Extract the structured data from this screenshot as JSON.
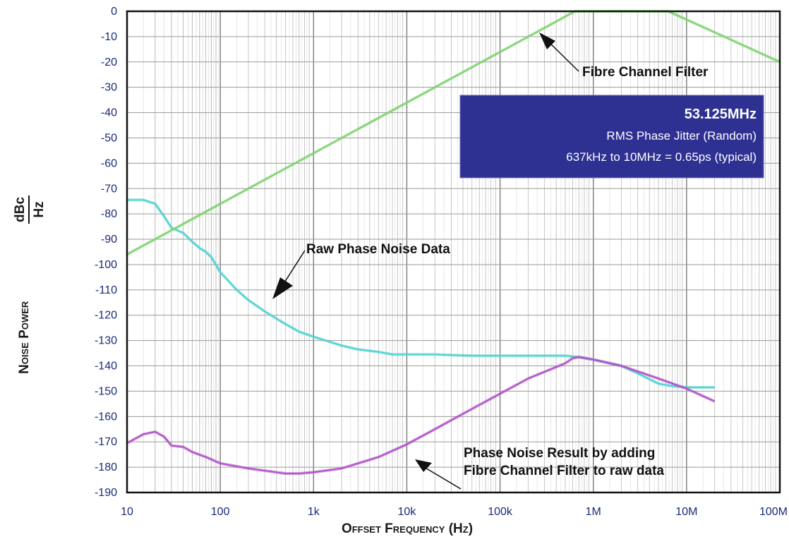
{
  "chart_data": {
    "type": "line",
    "xscale": "log",
    "xlim": [
      10,
      100000000
    ],
    "ylim": [
      -190,
      0
    ],
    "grid": true,
    "xlabel": "Offset Frequency (Hz)",
    "ylabel_main": "Noise Power",
    "ylabel_unit_num": "dBc",
    "ylabel_unit_den": "Hz",
    "x_tick_values": [
      10,
      100,
      1000,
      10000,
      100000,
      1000000,
      10000000,
      100000000
    ],
    "x_tick_labels": [
      "10",
      "100",
      "1k",
      "10k",
      "100k",
      "1M",
      "10M",
      "100M"
    ],
    "y_ticks": [
      0,
      -10,
      -20,
      -30,
      -40,
      -50,
      -60,
      -70,
      -80,
      -90,
      -100,
      -110,
      -120,
      -130,
      -140,
      -150,
      -160,
      -170,
      -180,
      -190
    ],
    "series": [
      {
        "color": "#4fd2d2",
        "x": [
          10,
          15,
          20,
          25,
          30,
          40,
          50,
          60,
          70,
          80,
          100,
          150,
          200,
          300,
          500,
          700,
          1000,
          2000,
          3000,
          5000,
          7000,
          10000,
          20000,
          50000,
          100000,
          200000,
          500000,
          700000,
          1000000,
          2000000,
          3000000,
          5000000,
          7000000,
          10000000,
          20000000
        ],
        "y": [
          -74.5,
          -74.5,
          -76,
          -81,
          -85.5,
          -87.5,
          -91,
          -93.5,
          -95,
          -97,
          -103,
          -110,
          -114,
          -118.5,
          -123.5,
          -126.5,
          -128.5,
          -132,
          -133.5,
          -134.5,
          -135.5,
          -135.5,
          -135.5,
          -136,
          -136,
          -136,
          -136,
          -136.5,
          -137.5,
          -140,
          -143,
          -147,
          -148,
          -148.5,
          -148.5
        ]
      },
      {
        "color": "#b050c8",
        "x": [
          10,
          15,
          20,
          25,
          30,
          40,
          50,
          70,
          100,
          200,
          500,
          700,
          1000,
          2000,
          5000,
          10000,
          20000,
          50000,
          100000,
          200000,
          500000,
          600000,
          700000,
          1000000,
          2000000,
          5000000,
          10000000,
          20000000
        ],
        "y": [
          -170.5,
          -167,
          -166,
          -168,
          -171.5,
          -172,
          -174,
          -176,
          -178.5,
          -180.5,
          -182.5,
          -182.5,
          -182,
          -180.5,
          -176,
          -171,
          -165,
          -157,
          -151,
          -145,
          -139,
          -137,
          -136.5,
          -137.5,
          -140,
          -145,
          -149,
          -154
        ]
      },
      {
        "color": "#7ed36e",
        "x": [
          10,
          637000,
          6370000,
          100000000
        ],
        "y": [
          -96,
          0,
          0,
          -20
        ]
      }
    ],
    "annotations": [
      {
        "text": "Fibre Channel Filter"
      },
      {
        "text": "Raw Phase Noise Data"
      },
      {
        "lines": [
          "Phase Noise Result by adding",
          "Fibre Channel Filter to raw data"
        ]
      }
    ],
    "info_box": {
      "line1": "53.125MHz",
      "line2": "RMS Phase Jitter (Random)",
      "line3": "637kHz to 10MHz = 0.65ps (typical)",
      "bg_color": "#2e3192"
    }
  }
}
